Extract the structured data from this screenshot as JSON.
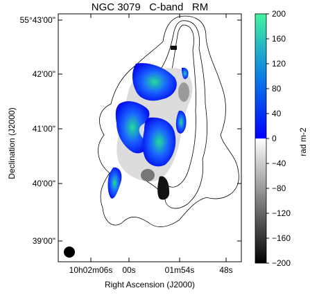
{
  "chart_data": {
    "type": "heatmap",
    "title": "NGC 3079   C-band   RM",
    "xlabel": "Right Ascension (J2000)",
    "ylabel": "Declination (J2000)",
    "x_ticks": [
      "10h02m06s",
      "00s",
      "01m54s",
      "48s"
    ],
    "y_ticks": [
      "55°43'00\"",
      "42'00\"",
      "41'00\"",
      "40'00\"",
      "39'00\""
    ],
    "colorbar": {
      "label": "rad m-2",
      "range": [
        -200,
        200
      ],
      "ticks": [
        200,
        160,
        120,
        80,
        40,
        0,
        -40,
        -80,
        -120,
        -160,
        -200
      ],
      "colormap_positive": [
        "#0000ff",
        "#00ddaa",
        "#55ff99"
      ],
      "colormap_negative": [
        "#ffffff",
        "#000000"
      ]
    },
    "beam": "filled circle, bottom-left"
  }
}
